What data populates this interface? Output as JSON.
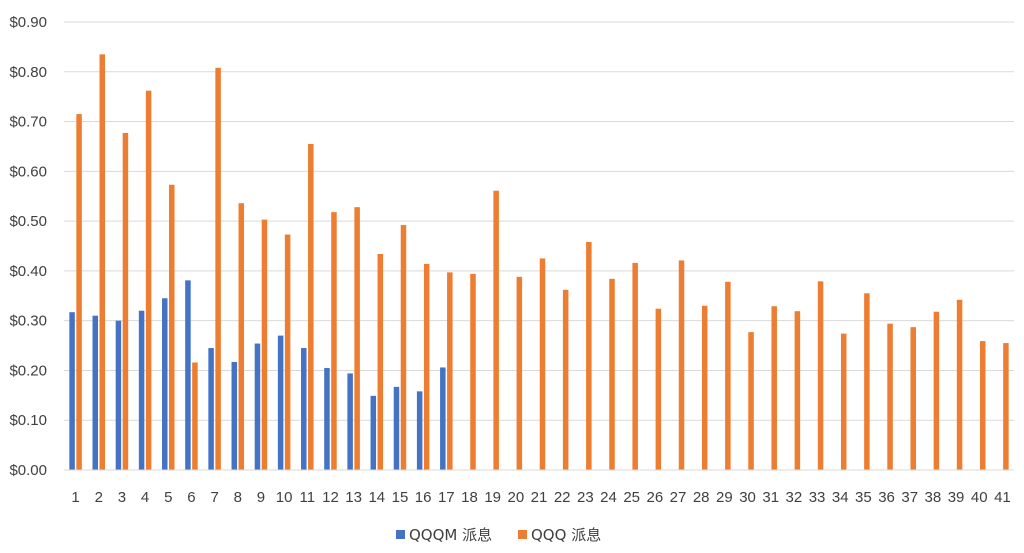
{
  "chart_data": {
    "type": "bar",
    "categories": [
      "1",
      "2",
      "3",
      "4",
      "5",
      "6",
      "7",
      "8",
      "9",
      "10",
      "11",
      "12",
      "13",
      "14",
      "15",
      "16",
      "17",
      "18",
      "19",
      "20",
      "21",
      "22",
      "23",
      "24",
      "25",
      "26",
      "27",
      "28",
      "29",
      "30",
      "31",
      "32",
      "33",
      "34",
      "35",
      "36",
      "37",
      "38",
      "39",
      "40",
      "41"
    ],
    "series": [
      {
        "name": "QQQM 派息",
        "color": "#4472C4",
        "values": [
          0.317,
          0.31,
          0.3,
          0.32,
          0.345,
          0.381,
          0.245,
          0.217,
          0.254,
          0.27,
          0.245,
          0.205,
          0.194,
          0.149,
          0.167,
          0.158,
          0.206,
          null,
          null,
          null,
          null,
          null,
          null,
          null,
          null,
          null,
          null,
          null,
          null,
          null,
          null,
          null,
          null,
          null,
          null,
          null,
          null,
          null,
          null,
          null,
          null
        ]
      },
      {
        "name": "QQQ 派息",
        "color": "#ED7D31",
        "values": [
          0.715,
          0.835,
          0.677,
          0.762,
          0.573,
          0.216,
          0.808,
          0.536,
          0.503,
          0.473,
          0.655,
          0.518,
          0.528,
          0.434,
          0.492,
          0.414,
          0.397,
          0.394,
          0.561,
          0.388,
          0.425,
          0.362,
          0.458,
          0.384,
          0.416,
          0.324,
          0.421,
          0.33,
          0.378,
          0.277,
          0.329,
          0.319,
          0.379,
          0.274,
          0.355,
          0.294,
          0.287,
          0.318,
          0.342,
          0.259,
          0.255
        ]
      }
    ],
    "y_ticks": [
      "$0.00",
      "$0.10",
      "$0.20",
      "$0.30",
      "$0.40",
      "$0.50",
      "$0.60",
      "$0.70",
      "$0.80",
      "$0.90"
    ],
    "ylim": [
      0,
      0.9
    ],
    "grid": true,
    "legend_position": "bottom"
  }
}
